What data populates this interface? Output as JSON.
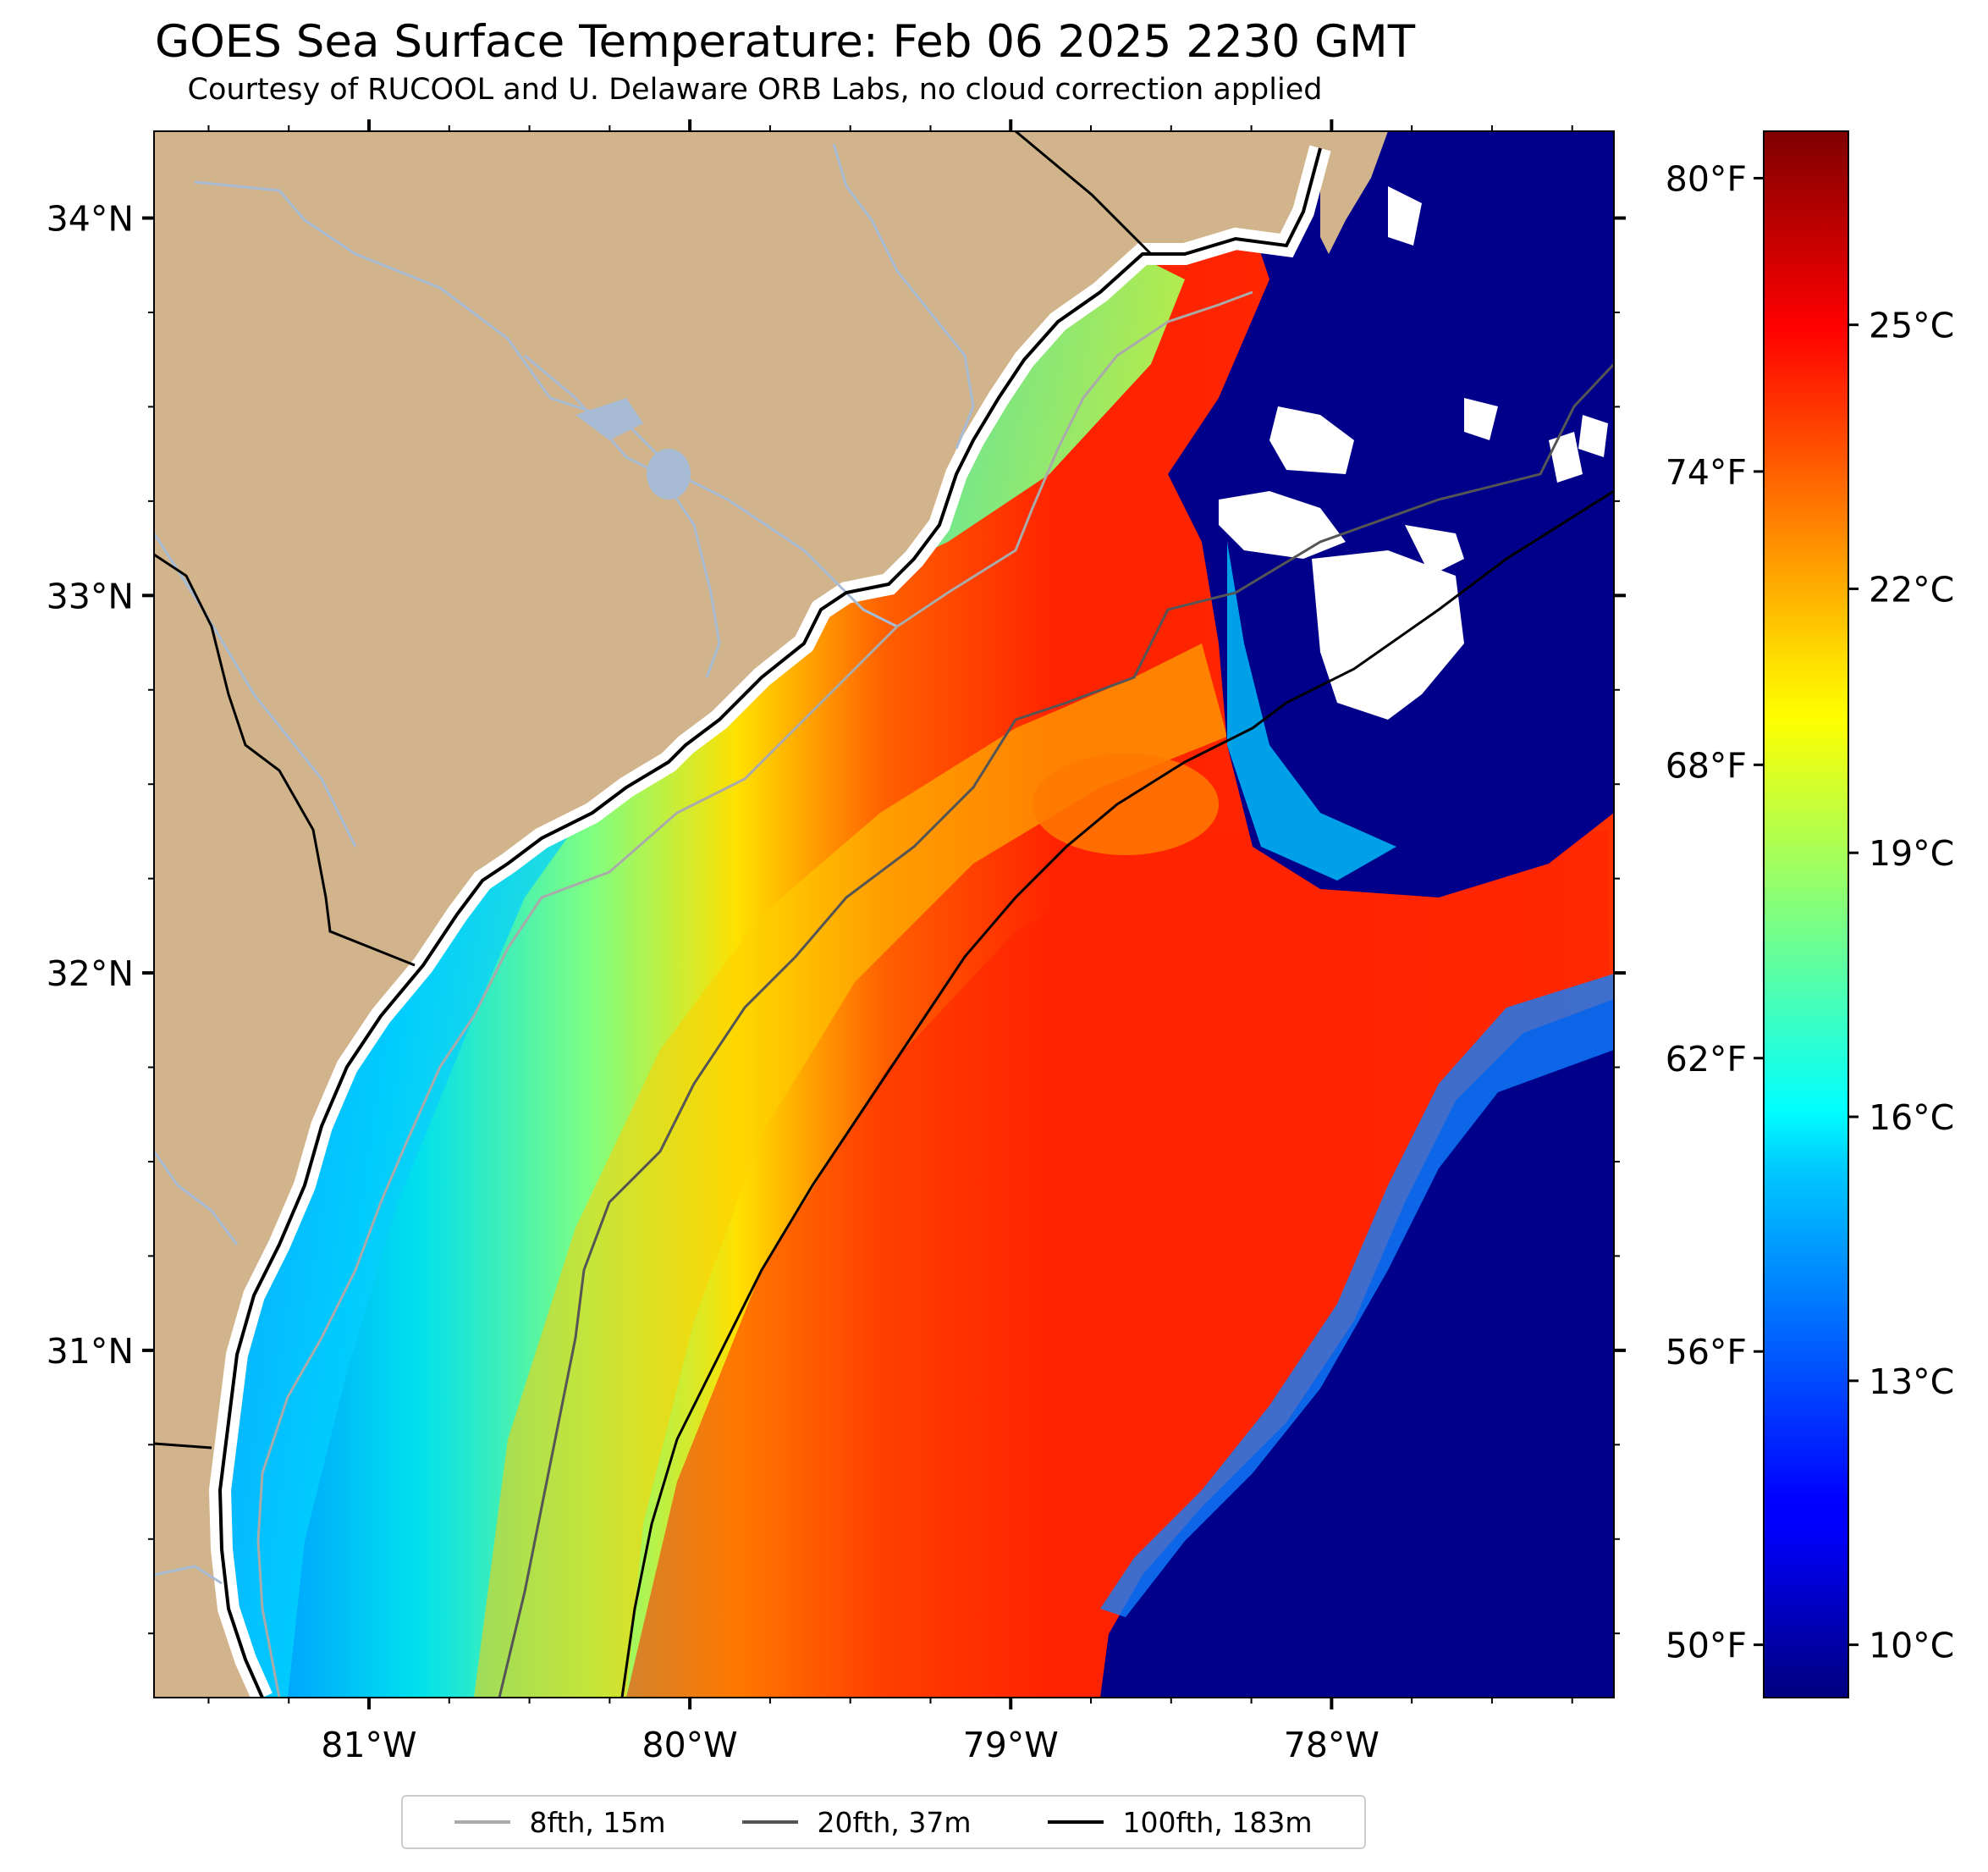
{
  "title": "GOES Sea Surface Temperature: Feb 06 2025 2230 GMT",
  "subtitle": "Courtesy of RUCOOL and U. Delaware ORB Labs, no cloud correction applied",
  "map": {
    "lon_range": [
      -81.67,
      -77.12
    ],
    "lat_range": [
      30.08,
      34.23
    ],
    "lon_ticks": [
      {
        "value": -81,
        "label": "81°W"
      },
      {
        "value": -80,
        "label": "80°W"
      },
      {
        "value": -79,
        "label": "79°W"
      },
      {
        "value": -78,
        "label": "78°W"
      }
    ],
    "lat_ticks": [
      {
        "value": 34,
        "label": "34°N"
      },
      {
        "value": 33,
        "label": "33°N"
      },
      {
        "value": 32,
        "label": "32°N"
      },
      {
        "value": 31,
        "label": "31°N"
      }
    ],
    "colors": {
      "land": "#d2b48c",
      "no_data": "#ffffff",
      "river": "#a7bcd4",
      "coastline": "#000000",
      "state_border": "#000000"
    }
  },
  "colorbar": {
    "colormap": "jet",
    "celsius_range": [
      9.4,
      27.2
    ],
    "celsius_ticks": [
      {
        "value": 10,
        "label": "10°C"
      },
      {
        "value": 13,
        "label": "13°C"
      },
      {
        "value": 16,
        "label": "16°C"
      },
      {
        "value": 19,
        "label": "19°C"
      },
      {
        "value": 22,
        "label": "22°C"
      },
      {
        "value": 25,
        "label": "25°C"
      }
    ],
    "fahrenheit_ticks": [
      {
        "value": 50,
        "label": "50°F"
      },
      {
        "value": 56,
        "label": "56°F"
      },
      {
        "value": 62,
        "label": "62°F"
      },
      {
        "value": 68,
        "label": "68°F"
      },
      {
        "value": 74,
        "label": "74°F"
      },
      {
        "value": 80,
        "label": "80°F"
      }
    ]
  },
  "legend": {
    "items": [
      {
        "label": "8fth, 15m",
        "color": "#aaaaaa"
      },
      {
        "label": "20fth, 37m",
        "color": "#555555"
      },
      {
        "label": "100fth, 183m",
        "color": "#000000"
      }
    ]
  }
}
